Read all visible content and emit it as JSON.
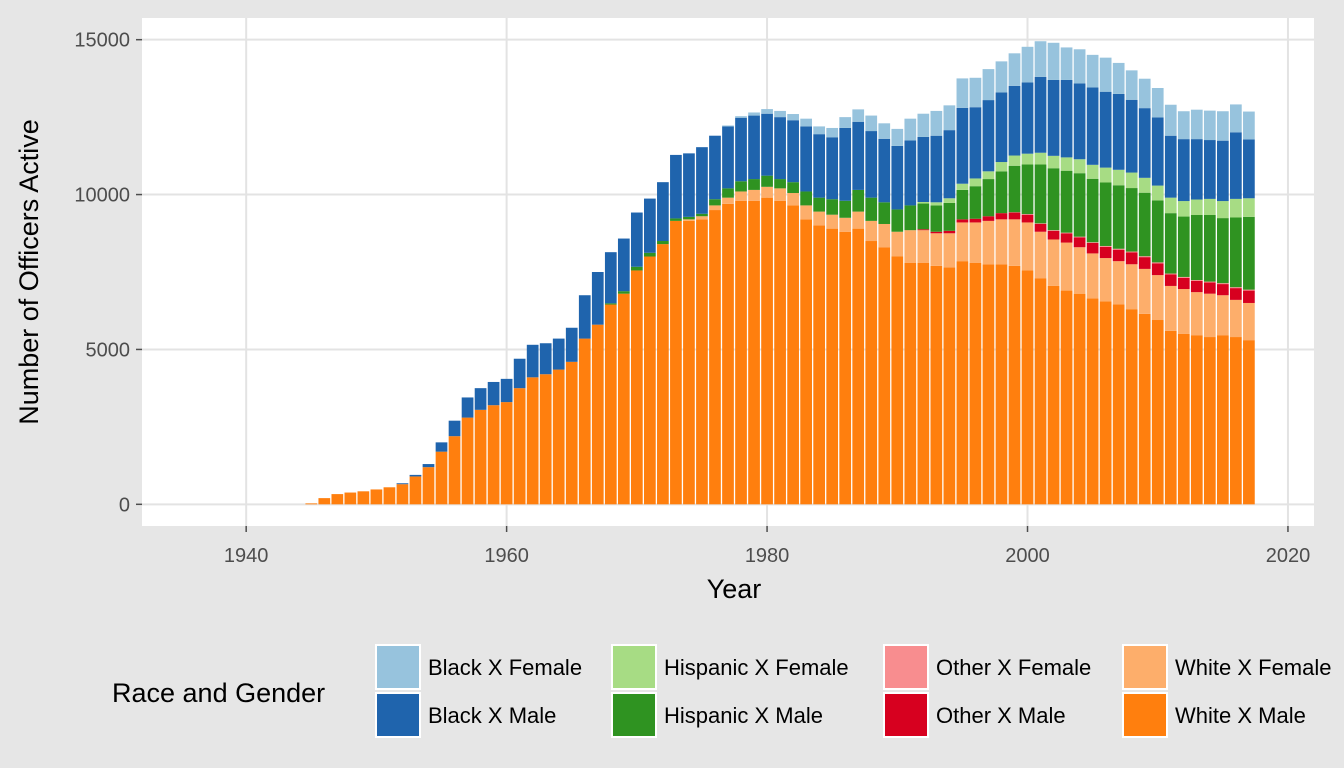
{
  "chart_data": {
    "type": "bar",
    "stacked": true,
    "xlabel": "Year",
    "ylabel": "Number of Officers Active",
    "xlim": [
      1932,
      2022
    ],
    "ylim": [
      -700,
      15700
    ],
    "x_ticks": [
      "1940",
      "1960",
      "1980",
      "2000",
      "2020"
    ],
    "y_ticks": [
      "0",
      "5000",
      "10000",
      "15000"
    ],
    "grid": true,
    "legend_position": "bottom",
    "legend_title": "Race and Gender",
    "x": [
      1945,
      1946,
      1947,
      1948,
      1949,
      1950,
      1951,
      1952,
      1953,
      1954,
      1955,
      1956,
      1957,
      1958,
      1959,
      1960,
      1961,
      1962,
      1963,
      1964,
      1965,
      1966,
      1967,
      1968,
      1969,
      1970,
      1971,
      1972,
      1973,
      1974,
      1975,
      1976,
      1977,
      1978,
      1979,
      1980,
      1981,
      1982,
      1983,
      1984,
      1985,
      1986,
      1987,
      1988,
      1989,
      1990,
      1991,
      1992,
      1993,
      1994,
      1995,
      1996,
      1997,
      1998,
      1999,
      2000,
      2001,
      2002,
      2003,
      2004,
      2005,
      2006,
      2007,
      2008,
      2009,
      2010,
      2011,
      2012,
      2013,
      2014,
      2015,
      2016,
      2017
    ],
    "series": [
      {
        "name": "White X Male",
        "color": "#ff7f0e",
        "values": [
          30,
          200,
          330,
          380,
          420,
          480,
          550,
          650,
          900,
          1200,
          1700,
          2200,
          2800,
          3050,
          3200,
          3300,
          3750,
          4100,
          4200,
          4350,
          4600,
          5350,
          5800,
          6450,
          6800,
          7550,
          8000,
          8400,
          9150,
          9150,
          9200,
          9500,
          9700,
          9800,
          9800,
          9900,
          9800,
          9650,
          9200,
          9000,
          8900,
          8800,
          8900,
          8500,
          8300,
          8000,
          7800,
          7800,
          7700,
          7650,
          7850,
          7800,
          7750,
          7750,
          7700,
          7550,
          7300,
          7050,
          6900,
          6800,
          6650,
          6550,
          6450,
          6300,
          6150,
          5950,
          5600,
          5500,
          5450,
          5400,
          5450,
          5400,
          5300
        ]
      },
      {
        "name": "White X Female",
        "color": "#fdae6b",
        "values": [
          0,
          0,
          0,
          0,
          0,
          0,
          0,
          0,
          0,
          0,
          0,
          0,
          0,
          0,
          0,
          0,
          0,
          0,
          0,
          0,
          0,
          0,
          0,
          0,
          0,
          0,
          0,
          0,
          0,
          50,
          100,
          150,
          200,
          300,
          350,
          350,
          400,
          400,
          450,
          450,
          450,
          450,
          550,
          650,
          750,
          800,
          1050,
          1050,
          1050,
          1100,
          1250,
          1300,
          1400,
          1450,
          1500,
          1550,
          1500,
          1500,
          1550,
          1500,
          1450,
          1400,
          1400,
          1450,
          1450,
          1450,
          1450,
          1450,
          1400,
          1400,
          1300,
          1200,
          1200
        ]
      },
      {
        "name": "Other X Male",
        "color": "#d7001f",
        "values": [
          0,
          0,
          0,
          0,
          0,
          0,
          0,
          0,
          0,
          0,
          0,
          0,
          0,
          0,
          0,
          0,
          0,
          0,
          0,
          0,
          0,
          0,
          0,
          0,
          0,
          0,
          0,
          0,
          0,
          0,
          0,
          0,
          0,
          0,
          0,
          0,
          0,
          0,
          0,
          0,
          0,
          0,
          0,
          0,
          0,
          0,
          0,
          30,
          50,
          80,
          100,
          120,
          150,
          200,
          220,
          250,
          250,
          280,
          300,
          320,
          340,
          360,
          370,
          380,
          380,
          380,
          370,
          360,
          360,
          360,
          360,
          380,
          400
        ]
      },
      {
        "name": "Other X Female",
        "color": "#f88d8f",
        "values": [
          0,
          0,
          0,
          0,
          0,
          0,
          0,
          0,
          0,
          0,
          0,
          0,
          0,
          0,
          0,
          0,
          0,
          0,
          0,
          0,
          0,
          0,
          0,
          0,
          0,
          0,
          0,
          0,
          0,
          0,
          0,
          0,
          0,
          0,
          0,
          0,
          0,
          0,
          0,
          0,
          0,
          0,
          0,
          0,
          0,
          0,
          0,
          0,
          0,
          0,
          0,
          0,
          0,
          0,
          10,
          20,
          20,
          20,
          20,
          20,
          20,
          30,
          30,
          30,
          30,
          30,
          30,
          30,
          30,
          30,
          30,
          30,
          30
        ]
      },
      {
        "name": "Hispanic X Male",
        "color": "#2f9321",
        "values": [
          0,
          0,
          0,
          0,
          0,
          0,
          0,
          0,
          0,
          0,
          0,
          0,
          0,
          0,
          0,
          0,
          0,
          0,
          0,
          0,
          0,
          0,
          0,
          40,
          80,
          120,
          120,
          100,
          80,
          80,
          80,
          200,
          300,
          330,
          350,
          360,
          300,
          350,
          450,
          450,
          500,
          550,
          700,
          750,
          700,
          720,
          800,
          830,
          850,
          900,
          950,
          1050,
          1200,
          1350,
          1500,
          1600,
          1900,
          2000,
          2000,
          2050,
          2050,
          2050,
          2050,
          2050,
          2050,
          2000,
          1950,
          1950,
          2100,
          2150,
          2100,
          2250,
          2350
        ]
      },
      {
        "name": "Hispanic X Female",
        "color": "#a7dc84",
        "values": [
          0,
          0,
          0,
          0,
          0,
          0,
          0,
          0,
          0,
          0,
          0,
          0,
          0,
          0,
          0,
          0,
          0,
          0,
          0,
          0,
          0,
          0,
          0,
          0,
          0,
          0,
          0,
          0,
          0,
          0,
          0,
          0,
          0,
          0,
          0,
          0,
          0,
          0,
          0,
          0,
          0,
          0,
          0,
          0,
          0,
          0,
          0,
          50,
          100,
          150,
          200,
          250,
          250,
          300,
          330,
          350,
          380,
          400,
          430,
          450,
          450,
          480,
          500,
          500,
          480,
          480,
          500,
          500,
          500,
          520,
          550,
          600,
          600
        ]
      },
      {
        "name": "Black X Male",
        "color": "#1f64ad",
        "values": [
          0,
          0,
          0,
          0,
          0,
          0,
          0,
          30,
          50,
          100,
          300,
          500,
          650,
          700,
          750,
          750,
          950,
          1050,
          1000,
          1000,
          1100,
          1400,
          1700,
          1650,
          1700,
          1750,
          1750,
          1900,
          2050,
          2050,
          2150,
          2050,
          2000,
          2050,
          2050,
          2000,
          2000,
          2000,
          2100,
          2050,
          2000,
          2350,
          2200,
          2150,
          2050,
          2050,
          2100,
          2100,
          2150,
          2200,
          2450,
          2300,
          2300,
          2250,
          2250,
          2300,
          2450,
          2450,
          2500,
          2450,
          2500,
          2450,
          2450,
          2350,
          2250,
          2200,
          2000,
          2000,
          1950,
          1900,
          1950,
          2150,
          1900
        ]
      },
      {
        "name": "Black X Female",
        "color": "#97c3dd",
        "values": [
          0,
          0,
          0,
          0,
          0,
          0,
          0,
          0,
          0,
          0,
          0,
          0,
          0,
          0,
          0,
          0,
          0,
          0,
          0,
          0,
          0,
          0,
          0,
          0,
          0,
          0,
          0,
          0,
          0,
          0,
          0,
          0,
          30,
          50,
          100,
          150,
          200,
          200,
          250,
          250,
          300,
          350,
          400,
          500,
          500,
          550,
          700,
          750,
          800,
          800,
          950,
          950,
          1000,
          1000,
          1050,
          1150,
          1150,
          1200,
          1050,
          1100,
          1050,
          1100,
          1000,
          950,
          950,
          950,
          1000,
          900,
          950,
          950,
          950,
          900,
          900
        ]
      }
    ],
    "legend_items": [
      {
        "label": "Black X Female",
        "color": "#97c3dd"
      },
      {
        "label": "Black X Male",
        "color": "#1f64ad"
      },
      {
        "label": "Hispanic X Female",
        "color": "#a7dc84"
      },
      {
        "label": "Hispanic X Male",
        "color": "#2f9321"
      },
      {
        "label": "Other X Female",
        "color": "#f88d8f"
      },
      {
        "label": "Other X Male",
        "color": "#d7001f"
      },
      {
        "label": "White X Female",
        "color": "#fdae6b"
      },
      {
        "label": "White X Male",
        "color": "#ff7f0e"
      }
    ]
  }
}
